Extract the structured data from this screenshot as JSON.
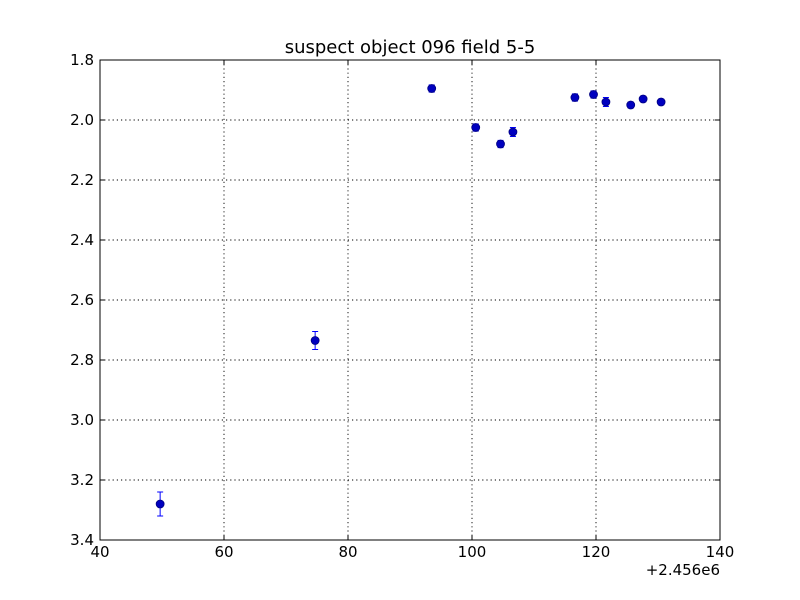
{
  "chart_data": {
    "type": "scatter",
    "title": "suspect object 096 field 5-5",
    "xlabel": "",
    "ylabel": "",
    "x_offset_label": "+2.456e6",
    "xlim": [
      40,
      140
    ],
    "ylim": [
      1.8,
      3.4
    ],
    "y_inverted": true,
    "grid": true,
    "x_ticks": [
      "40",
      "60",
      "80",
      "100",
      "120",
      "140"
    ],
    "y_ticks": [
      "1.8",
      "2.0",
      "2.2",
      "2.4",
      "2.6",
      "2.8",
      "3.0",
      "3.2",
      "3.4"
    ],
    "marker_color": "#0000bf",
    "errorbar_color": "#0000ff",
    "series": [
      {
        "x": [
          49.7,
          74.7,
          93.5,
          100.6,
          104.6,
          106.6,
          116.6,
          119.6,
          121.6,
          125.6,
          127.6,
          130.5
        ],
        "y": [
          3.28,
          2.735,
          1.895,
          2.025,
          2.08,
          2.04,
          1.925,
          1.915,
          1.94,
          1.95,
          1.93,
          1.94
        ],
        "err": [
          0.04,
          0.03,
          0.012,
          0.012,
          0.012,
          0.015,
          0.012,
          0.012,
          0.015,
          0.01,
          0.01,
          0.01
        ]
      }
    ]
  }
}
